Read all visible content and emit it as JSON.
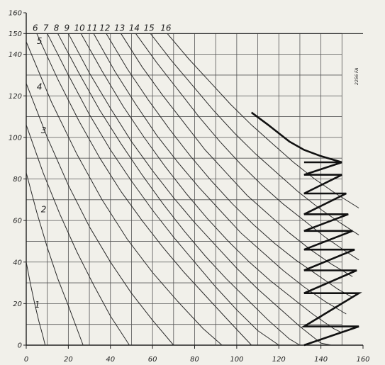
{
  "figure": {
    "note_text": "2256 FA",
    "axis_color": "#222222",
    "grid_color": "#555555",
    "curve_color": "#2a2a2a",
    "zigzag_color": "#111111"
  },
  "chart_data": {
    "type": "line",
    "title": "",
    "xlabel": "",
    "ylabel": "",
    "xlim": [
      0,
      160
    ],
    "ylim": [
      0,
      160
    ],
    "x_ticks": [
      0,
      20,
      40,
      60,
      80,
      100,
      120,
      140,
      160
    ],
    "y_ticks": [
      0,
      20,
      40,
      60,
      80,
      100,
      120,
      140,
      150,
      160
    ],
    "x_grid_step": 10,
    "y_grid_step": 10,
    "grid": true,
    "legend": "none",
    "series": [
      {
        "name": "1",
        "x": [
          0,
          2,
          4,
          6,
          8,
          9
        ],
        "y": [
          40,
          29.5,
          20,
          11.5,
          4,
          0
        ]
      },
      {
        "name": "2",
        "x": [
          0,
          5,
          10,
          15,
          20,
          27
        ],
        "y": [
          83,
          64,
          47,
          32,
          19,
          0
        ]
      },
      {
        "name": "3",
        "x": [
          0,
          8,
          16,
          24,
          32,
          40,
          49
        ],
        "y": [
          106,
          83,
          63,
          45,
          29,
          14,
          0
        ]
      },
      {
        "name": "4",
        "x": [
          0,
          10,
          20,
          30,
          40,
          50,
          60,
          70
        ],
        "y": [
          126,
          100,
          77,
          57,
          40,
          25,
          12,
          0
        ]
      },
      {
        "name": "5",
        "x": [
          0,
          12,
          24,
          36,
          48,
          60,
          72,
          84,
          93
        ],
        "y": [
          146,
          117,
          92,
          70,
          51,
          35,
          21,
          8,
          0
        ]
      },
      {
        "name": "6",
        "x": [
          5,
          15,
          25,
          35,
          45,
          55,
          65,
          75,
          85,
          95,
          107
        ],
        "y": [
          150,
          128,
          108,
          90,
          74,
          60,
          47,
          35,
          24,
          13,
          0
        ]
      },
      {
        "name": "7",
        "x": [
          10,
          20,
          30,
          40,
          50,
          60,
          70,
          80,
          90,
          100,
          110,
          120
        ],
        "y": [
          150,
          130,
          111,
          94,
          79,
          65,
          52,
          40,
          28,
          17,
          7,
          0
        ]
      },
      {
        "name": "8",
        "x": [
          15,
          25,
          35,
          45,
          55,
          65,
          75,
          85,
          95,
          105,
          115,
          125,
          130
        ],
        "y": [
          150,
          131,
          113,
          97,
          82,
          68,
          55,
          43,
          32,
          22,
          12,
          3,
          0
        ]
      },
      {
        "name": "9",
        "x": [
          20,
          30,
          40,
          50,
          60,
          70,
          80,
          90,
          100,
          110,
          120,
          130,
          140,
          145
        ],
        "y": [
          150,
          131,
          114,
          98,
          84,
          71,
          59,
          48,
          37,
          27,
          18,
          9,
          1,
          0
        ]
      },
      {
        "name": "10",
        "x": [
          26,
          36,
          46,
          56,
          66,
          76,
          86,
          96,
          106,
          116,
          126,
          136,
          146,
          150
        ],
        "y": [
          150,
          132,
          115,
          100,
          86,
          73,
          61,
          50,
          40,
          31,
          23,
          15,
          8,
          6
        ]
      },
      {
        "name": "11",
        "x": [
          32,
          42,
          52,
          62,
          72,
          82,
          92,
          102,
          112,
          122,
          132,
          142,
          152
        ],
        "y": [
          150,
          132,
          116,
          101,
          88,
          76,
          65,
          54,
          45,
          36,
          28,
          21,
          15
        ]
      },
      {
        "name": "12",
        "x": [
          38,
          48,
          58,
          68,
          78,
          88,
          98,
          108,
          118,
          128,
          138,
          148,
          155
        ],
        "y": [
          150,
          133,
          118,
          104,
          91,
          79,
          68,
          58,
          49,
          41,
          34,
          27,
          23
        ]
      },
      {
        "name": "13",
        "x": [
          45,
          55,
          65,
          75,
          85,
          95,
          105,
          115,
          125,
          135,
          145,
          155
        ],
        "y": [
          150,
          134,
          120,
          107,
          94,
          83,
          72,
          63,
          54,
          46,
          39,
          33
        ]
      },
      {
        "name": "14",
        "x": [
          52,
          62,
          72,
          82,
          92,
          102,
          112,
          122,
          132,
          142,
          152,
          158
        ],
        "y": [
          150,
          136,
          123,
          110,
          98,
          87,
          77,
          68,
          60,
          52,
          45,
          41
        ]
      },
      {
        "name": "15",
        "x": [
          59,
          69,
          79,
          89,
          99,
          109,
          119,
          129,
          139,
          149,
          158
        ],
        "y": [
          150,
          137,
          125,
          113,
          102,
          92,
          83,
          74,
          66,
          59,
          53
        ]
      },
      {
        "name": "16",
        "x": [
          67,
          77,
          87,
          97,
          107,
          117,
          127,
          137,
          147,
          158
        ],
        "y": [
          150,
          138,
          127,
          116,
          106,
          97,
          88,
          80,
          73,
          66
        ]
      }
    ],
    "heavy_curve": {
      "x": [
        107,
        115,
        125,
        132,
        140,
        150
      ],
      "y": [
        112,
        106,
        98,
        94,
        91,
        88
      ]
    },
    "zigzag": {
      "x": [
        132,
        150,
        132,
        150,
        132,
        152,
        132,
        153,
        132,
        155,
        132,
        156,
        132,
        157,
        132,
        158,
        132,
        158,
        132
      ],
      "y": [
        88,
        88,
        82,
        82,
        73,
        73,
        63,
        63,
        55,
        55,
        46,
        46,
        36,
        36,
        25,
        25,
        9,
        9,
        0
      ]
    },
    "curve_labels": [
      "1",
      "2",
      "3",
      "4",
      "5",
      "6",
      "7",
      "8",
      "9",
      "10",
      "11",
      "12",
      "13",
      "14",
      "15",
      "16"
    ]
  }
}
